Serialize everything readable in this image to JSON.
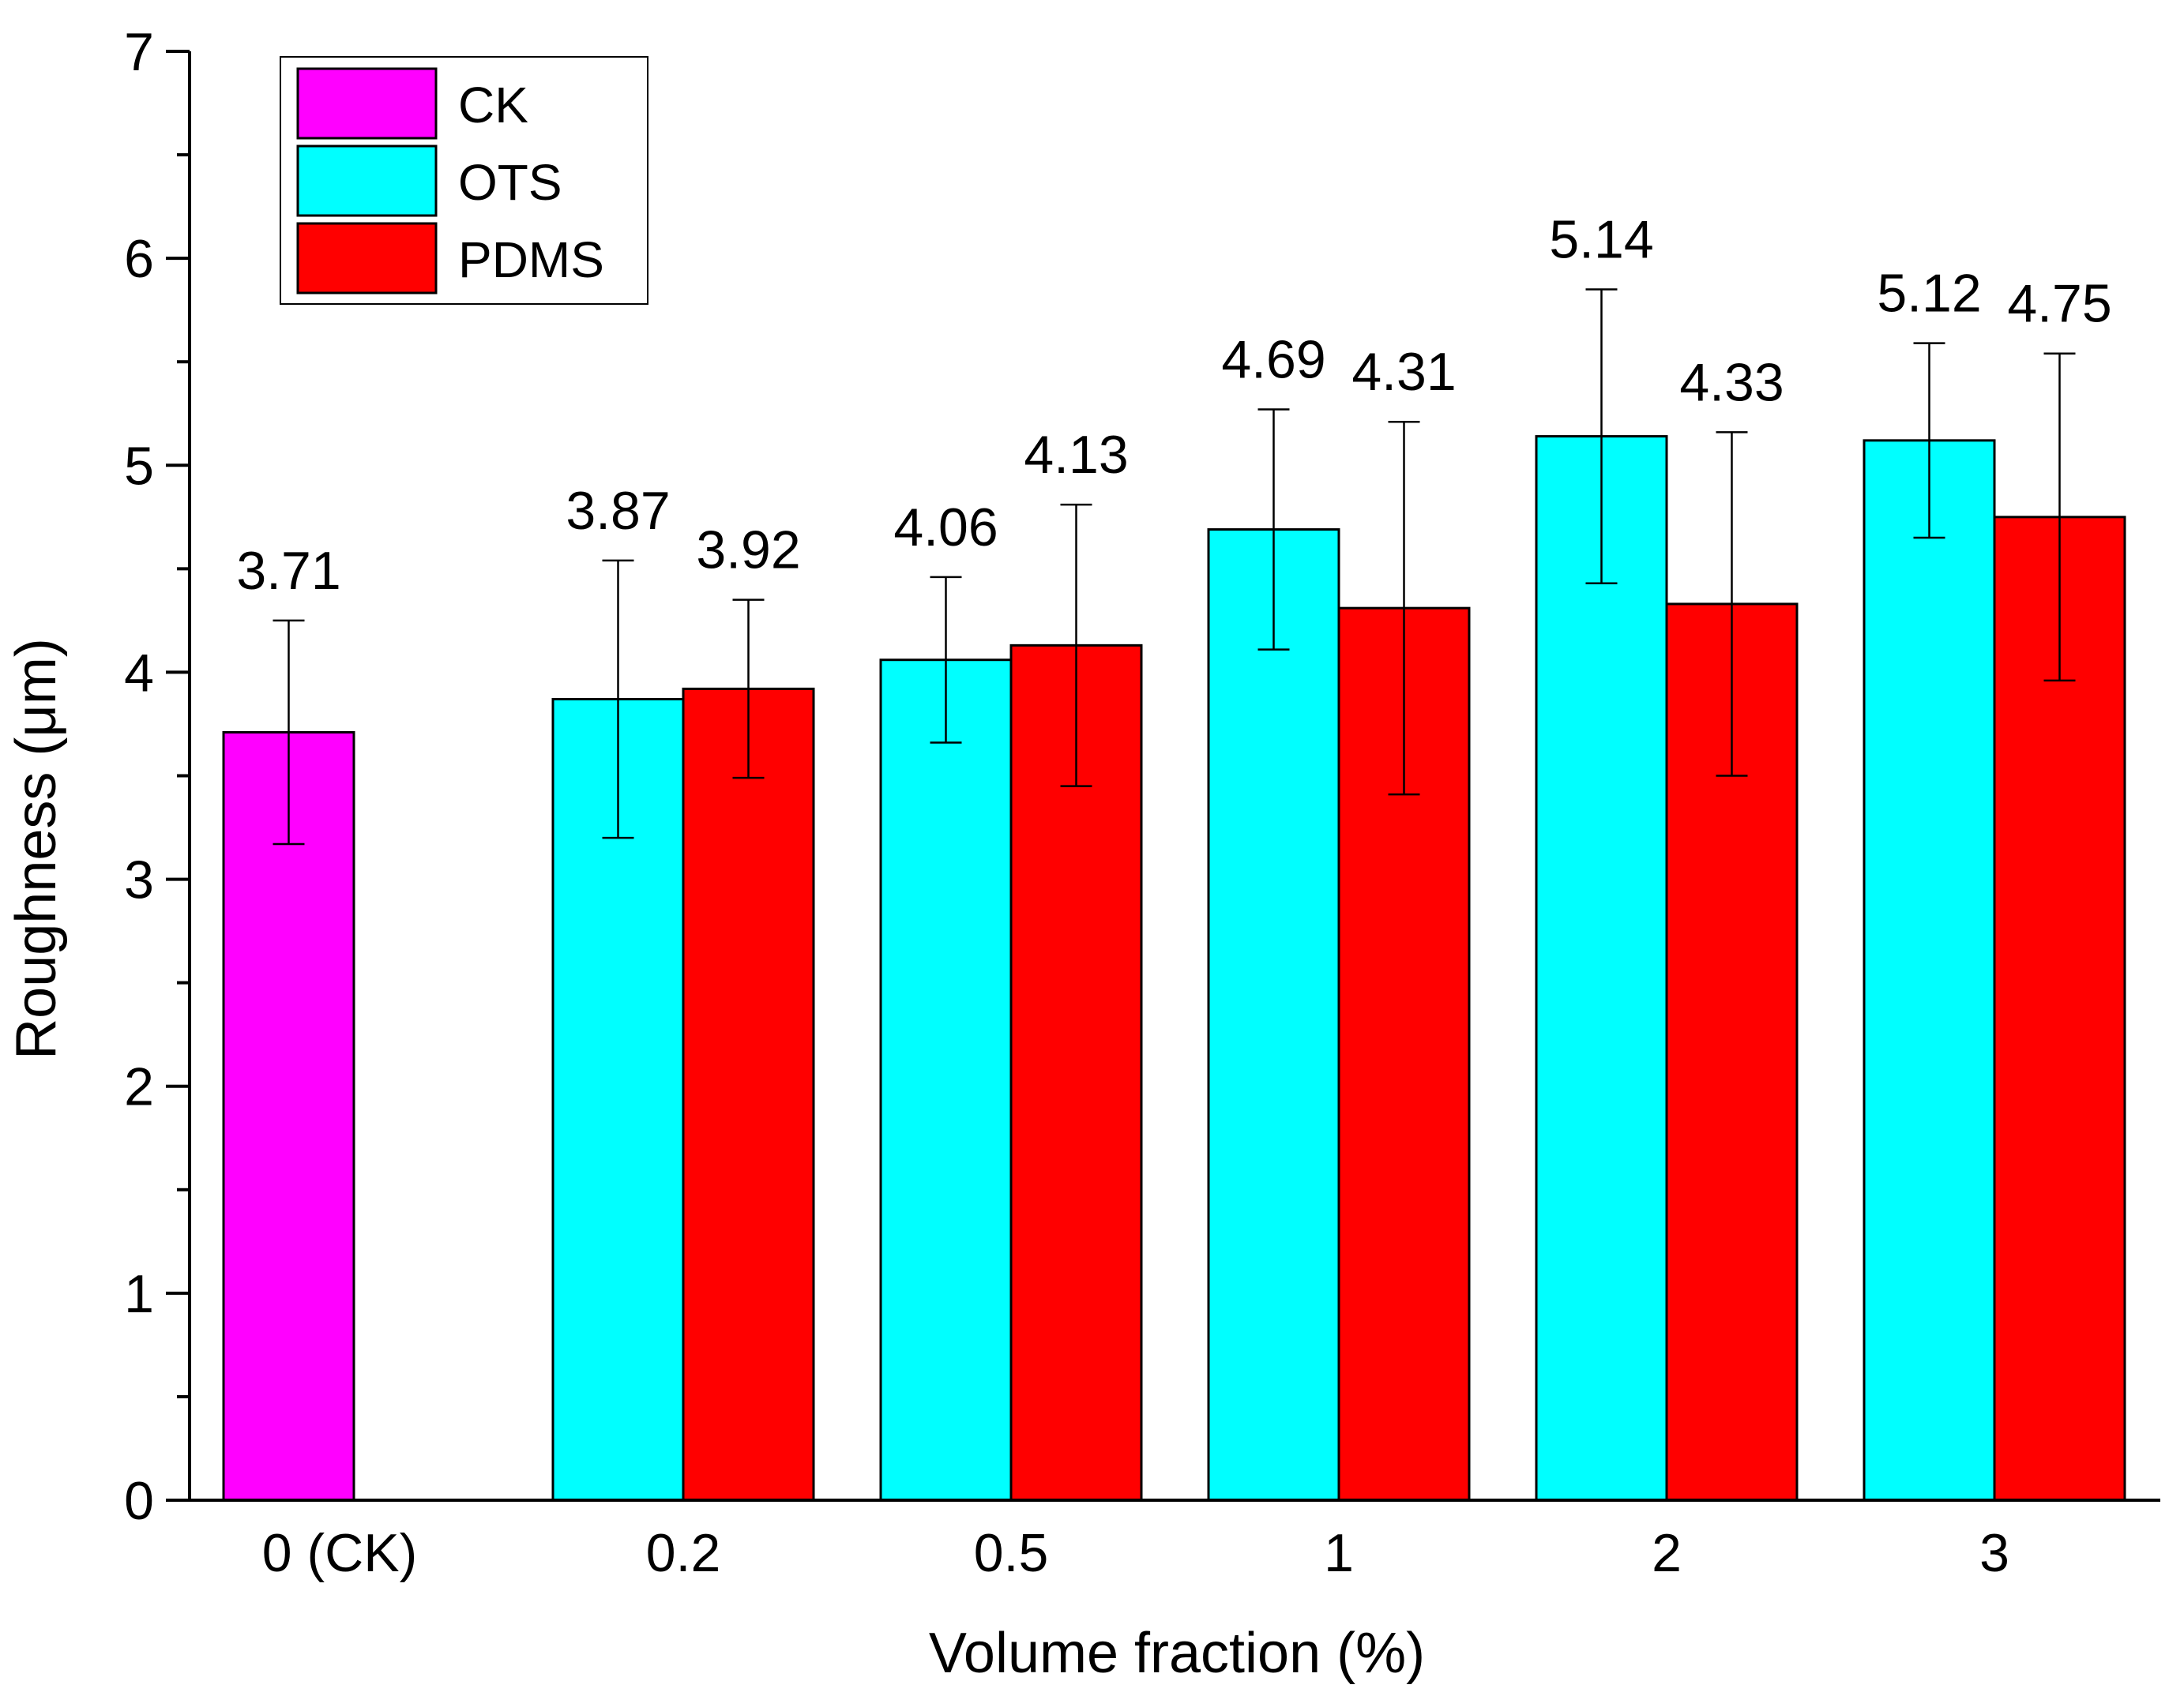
{
  "chart_data": {
    "type": "bar",
    "title": "",
    "xlabel": "Volume fraction (%)",
    "ylabel": "Roughness (μm)",
    "ylim": [
      0,
      7
    ],
    "yticks": [
      0,
      1,
      2,
      3,
      4,
      5,
      6,
      7
    ],
    "categories": [
      "0 (CK)",
      "0.2",
      "0.5",
      "1",
      "2",
      "3"
    ],
    "series": [
      {
        "name": "CK",
        "color": "#ff00ff",
        "values": [
          3.71,
          null,
          null,
          null,
          null,
          null
        ],
        "errors": [
          0.54,
          null,
          null,
          null,
          null,
          null
        ],
        "labels": [
          "3.71",
          null,
          null,
          null,
          null,
          null
        ]
      },
      {
        "name": "OTS",
        "color": "#00ffff",
        "values": [
          null,
          3.87,
          4.06,
          4.69,
          5.14,
          5.12
        ],
        "errors": [
          null,
          0.67,
          0.4,
          0.58,
          0.71,
          0.47
        ],
        "labels": [
          null,
          "3.87",
          "4.06",
          "4.69",
          "5.14",
          "5.12"
        ]
      },
      {
        "name": "PDMS",
        "color": "#ff0000",
        "values": [
          null,
          3.92,
          4.13,
          4.31,
          4.33,
          4.75
        ],
        "errors": [
          null,
          0.43,
          0.68,
          0.9,
          0.83,
          0.79
        ],
        "labels": [
          null,
          "3.92",
          "4.13",
          "4.31",
          "4.33",
          "4.75"
        ]
      }
    ],
    "legend": {
      "position": "top-left",
      "entries": [
        "CK",
        "OTS",
        "PDMS"
      ]
    },
    "grid": false
  }
}
